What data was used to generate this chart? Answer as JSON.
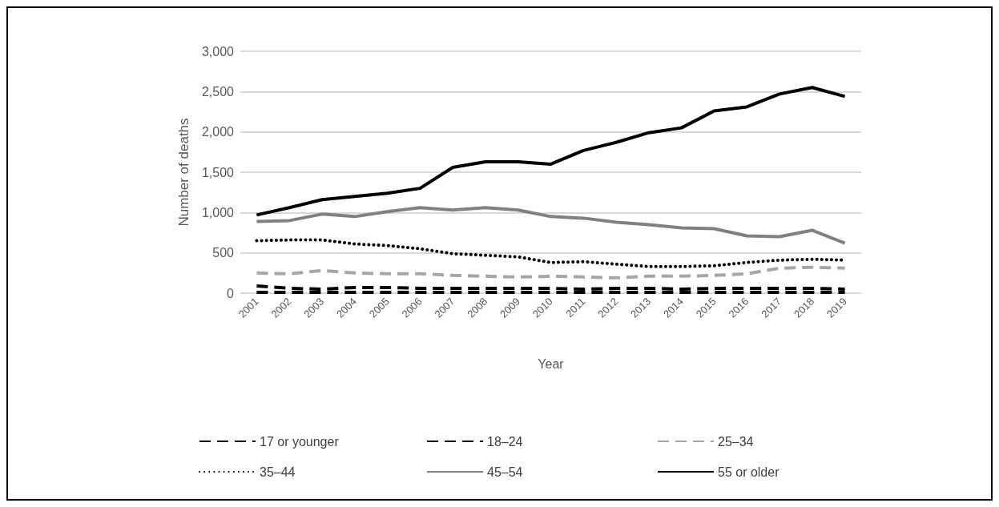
{
  "chart_data": {
    "type": "line",
    "xlabel": "Year",
    "ylabel": "Number of deaths",
    "categories": [
      "2001",
      "2002",
      "2003",
      "2004",
      "2005",
      "2006",
      "2007",
      "2008",
      "2009",
      "2010",
      "2011",
      "2012",
      "2013",
      "2014",
      "2015",
      "2016",
      "2017",
      "2018",
      "2019"
    ],
    "series": [
      {
        "name": "17 or younger",
        "color": "#000000",
        "line_style": "dashed",
        "values": [
          10,
          10,
          10,
          10,
          10,
          10,
          10,
          10,
          10,
          10,
          10,
          10,
          10,
          10,
          10,
          10,
          10,
          10,
          10
        ]
      },
      {
        "name": "18–24",
        "color": "#000000",
        "line_style": "dashed",
        "values": [
          90,
          60,
          50,
          70,
          70,
          60,
          60,
          60,
          60,
          60,
          50,
          60,
          60,
          50,
          60,
          60,
          60,
          60,
          50
        ]
      },
      {
        "name": "25–34",
        "color": "#a6a6a6",
        "line_style": "dashed",
        "values": [
          250,
          240,
          280,
          250,
          240,
          240,
          220,
          210,
          200,
          210,
          200,
          190,
          210,
          210,
          220,
          240,
          310,
          320,
          310
        ]
      },
      {
        "name": "35–44",
        "color": "#000000",
        "line_style": "dotted",
        "values": [
          650,
          660,
          660,
          610,
          590,
          550,
          490,
          470,
          450,
          380,
          390,
          360,
          330,
          330,
          340,
          380,
          410,
          420,
          410
        ]
      },
      {
        "name": "45–54",
        "color": "#808080",
        "line_style": "solid",
        "values": [
          890,
          900,
          980,
          950,
          1010,
          1060,
          1030,
          1060,
          1030,
          950,
          930,
          880,
          850,
          810,
          800,
          710,
          700,
          780,
          620
        ]
      },
      {
        "name": "55 or older",
        "color": "#000000",
        "line_style": "solid",
        "values": [
          970,
          1060,
          1160,
          1200,
          1240,
          1300,
          1560,
          1630,
          1630,
          1600,
          1770,
          1870,
          1990,
          2050,
          2260,
          2310,
          2470,
          2550,
          2440
        ]
      }
    ],
    "ylim": [
      0,
      3000
    ],
    "yticks": [
      {
        "value": 0,
        "label": "0"
      },
      {
        "value": 500,
        "label": "500"
      },
      {
        "value": 1000,
        "label": "1,000"
      },
      {
        "value": 1500,
        "label": "1,500"
      },
      {
        "value": 2000,
        "label": "2,000"
      },
      {
        "value": 2500,
        "label": "2,500"
      },
      {
        "value": 3000,
        "label": "3,000"
      }
    ],
    "grid": "y",
    "legend": "bottom",
    "marker": "none"
  }
}
